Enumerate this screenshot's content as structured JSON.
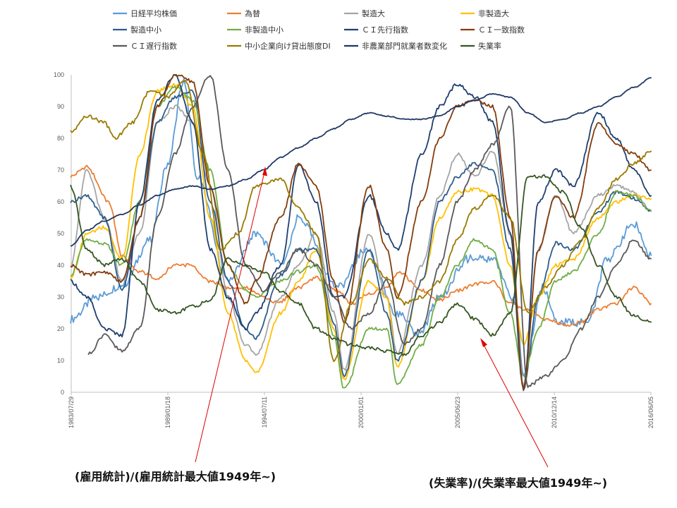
{
  "chart_data": {
    "type": "line",
    "title": "",
    "xlabel": "",
    "ylabel": "",
    "ylim": [
      0,
      100
    ],
    "yticks": [
      0,
      10,
      20,
      30,
      40,
      50,
      60,
      70,
      80,
      90,
      100
    ],
    "xlim": [
      "1983-07-29",
      "2016-06-05"
    ],
    "xticks": [
      "1983/07/29",
      "1989/01/18",
      "1994/07/11",
      "2000/01/01",
      "2005/06/23",
      "2010/12/14",
      "2016/06/05"
    ],
    "grid": "none",
    "legend_position": "top",
    "series": [
      {
        "name": "日経平均株価",
        "color": "#5b9bd5",
        "x": [
          "1983-07",
          "1985-01",
          "1986-07",
          "1988-01",
          "1989-01",
          "1989-12",
          "1990-09",
          "1992-06",
          "1994-01",
          "1995-07",
          "1996-06",
          "1998-09",
          "2000-04",
          "2002-01",
          "2003-04",
          "2004-06",
          "2006-01",
          "2007-06",
          "2008-10",
          "2009-03",
          "2010-04",
          "2011-03",
          "2012-11",
          "2013-12",
          "2015-06",
          "2016-06"
        ],
        "y": [
          23,
          30,
          34,
          48,
          72,
          98,
          68,
          35,
          50,
          40,
          55,
          33,
          45,
          25,
          18,
          30,
          42,
          42,
          28,
          5,
          33,
          22,
          22,
          42,
          53,
          43
        ]
      },
      {
        "name": "為替",
        "color": "#ed7d31",
        "x": [
          "1983-07",
          "1984-06",
          "1985-09",
          "1986-06",
          "1987-06",
          "1988-06",
          "1989-06",
          "1990-04",
          "1991-06",
          "1992-06",
          "1993-06",
          "1994-06",
          "1995-04",
          "1996-06",
          "1997-06",
          "1998-08",
          "1999-06",
          "2000-06",
          "2001-06",
          "2002-02",
          "2003-06",
          "2004-06",
          "2005-06",
          "2006-06",
          "2007-06",
          "2008-06",
          "2009-06",
          "2010-06",
          "2011-10",
          "2012-06",
          "2013-06",
          "2014-06",
          "2015-06",
          "2016-06"
        ],
        "y": [
          68,
          71,
          60,
          43,
          38,
          36,
          40,
          40,
          35,
          33,
          33,
          30,
          28,
          33,
          36,
          32,
          28,
          31,
          33,
          38,
          32,
          29,
          32,
          34,
          35,
          28,
          26,
          23,
          21,
          22,
          26,
          28,
          33,
          28
        ]
      },
      {
        "name": "製造大",
        "color": "#a5a5a5",
        "x": [
          "1983-07",
          "1984-06",
          "1985-06",
          "1986-06",
          "1987-06",
          "1988-06",
          "1989-06",
          "1990-06",
          "1991-06",
          "1992-06",
          "1993-06",
          "1994-01",
          "1995-06",
          "1996-06",
          "1997-06",
          "1998-06",
          "1999-01",
          "2000-06",
          "2001-06",
          "2002-01",
          "2003-06",
          "2004-06",
          "2005-06",
          "2006-06",
          "2007-06",
          "2008-06",
          "2009-03",
          "2010-01",
          "2011-01",
          "2012-01",
          "2013-06",
          "2014-06",
          "2015-06",
          "2016-06"
        ],
        "y": [
          40,
          70,
          55,
          35,
          50,
          85,
          90,
          85,
          65,
          30,
          15,
          12,
          30,
          40,
          50,
          25,
          7,
          50,
          30,
          12,
          40,
          62,
          75,
          68,
          76,
          50,
          2,
          45,
          62,
          50,
          62,
          65,
          63,
          57
        ]
      },
      {
        "name": "非製造大",
        "color": "#ffc000",
        "x": [
          "1983-07",
          "1984-06",
          "1985-06",
          "1986-06",
          "1987-06",
          "1988-06",
          "1989-06",
          "1990-06",
          "1991-06",
          "1992-06",
          "1993-06",
          "1994-01",
          "1995-06",
          "1996-06",
          "1997-06",
          "1998-06",
          "1999-01",
          "2000-06",
          "2001-06",
          "2002-01",
          "2003-06",
          "2004-06",
          "2005-06",
          "2006-06",
          "2007-06",
          "2008-06",
          "2009-03",
          "2010-01",
          "2011-01",
          "2012-01",
          "2013-06",
          "2014-06",
          "2015-06",
          "2016-06"
        ],
        "y": [
          36,
          50,
          52,
          42,
          75,
          95,
          97,
          90,
          55,
          25,
          10,
          6,
          25,
          35,
          45,
          20,
          4,
          35,
          30,
          8,
          35,
          55,
          63,
          64,
          62,
          40,
          15,
          30,
          40,
          42,
          55,
          60,
          62,
          61
        ]
      },
      {
        "name": "製造中小",
        "color": "#2e5c8a",
        "x": [
          "1983-07",
          "1984-06",
          "1985-06",
          "1986-06",
          "1987-06",
          "1988-06",
          "1989-06",
          "1990-06",
          "1991-06",
          "1992-06",
          "1993-06",
          "1994-01",
          "1995-06",
          "1996-06",
          "1997-06",
          "1998-06",
          "1999-01",
          "2000-06",
          "2001-06",
          "2002-01",
          "2003-06",
          "2004-06",
          "2005-06",
          "2006-06",
          "2007-06",
          "2008-06",
          "2009-03",
          "2010-01",
          "2011-01",
          "2012-01",
          "2013-06",
          "2014-06",
          "2015-06",
          "2016-06"
        ],
        "y": [
          60,
          62,
          55,
          32,
          55,
          85,
          93,
          95,
          60,
          35,
          20,
          17,
          37,
          45,
          45,
          22,
          5,
          45,
          25,
          10,
          35,
          60,
          68,
          72,
          70,
          45,
          1,
          30,
          47,
          45,
          57,
          63,
          61,
          57
        ]
      },
      {
        "name": "非製造中小",
        "color": "#70ad47",
        "x": [
          "1983-07",
          "1984-06",
          "1985-06",
          "1986-06",
          "1987-06",
          "1988-06",
          "1989-06",
          "1990-06",
          "1991-06",
          "1992-06",
          "1993-06",
          "1994-01",
          "1995-06",
          "1996-06",
          "1997-06",
          "1998-06",
          "1999-01",
          "2000-06",
          "2001-06",
          "2002-01",
          "2003-06",
          "2004-06",
          "2005-06",
          "2006-06",
          "2007-06",
          "2008-06",
          "2009-03",
          "2010-01",
          "2011-01",
          "2012-01",
          "2013-06",
          "2014-06",
          "2015-06",
          "2016-06"
        ],
        "y": [
          37,
          48,
          47,
          40,
          60,
          90,
          96,
          92,
          70,
          40,
          32,
          30,
          35,
          38,
          40,
          18,
          1,
          20,
          20,
          3,
          15,
          30,
          40,
          48,
          45,
          25,
          5,
          20,
          35,
          38,
          50,
          63,
          62,
          57
        ]
      },
      {
        "name": "ＣＩ先行指数",
        "color": "#1f3f6e",
        "x": [
          "1983-07",
          "1984-06",
          "1985-06",
          "1986-06",
          "1987-06",
          "1988-06",
          "1989-06",
          "1990-06",
          "1991-06",
          "1992-06",
          "1993-06",
          "1994-01",
          "1995-06",
          "1996-06",
          "1997-06",
          "1998-06",
          "1999-01",
          "2000-06",
          "2001-06",
          "2002-01",
          "2003-06",
          "2004-06",
          "2005-06",
          "2006-06",
          "2007-06",
          "2008-06",
          "2009-03",
          "2010-01",
          "2011-01",
          "2012-01",
          "2013-06",
          "2014-06",
          "2015-06",
          "2016-06"
        ],
        "y": [
          35,
          30,
          20,
          18,
          60,
          92,
          100,
          85,
          45,
          30,
          20,
          25,
          40,
          72,
          60,
          30,
          30,
          62,
          50,
          45,
          75,
          90,
          97,
          93,
          85,
          50,
          1,
          60,
          70,
          65,
          88,
          80,
          70,
          62
        ]
      },
      {
        "name": "ＣＩ一致指数",
        "color": "#843c0c",
        "x": [
          "1983-07",
          "1984-06",
          "1985-06",
          "1986-06",
          "1987-06",
          "1988-06",
          "1989-06",
          "1990-06",
          "1991-06",
          "1992-06",
          "1993-06",
          "1994-01",
          "1995-06",
          "1996-06",
          "1997-06",
          "1998-06",
          "1999-01",
          "2000-06",
          "2001-06",
          "2002-01",
          "2003-06",
          "2004-06",
          "2005-06",
          "2006-06",
          "2007-06",
          "2008-06",
          "2009-03",
          "2010-01",
          "2011-01",
          "2012-01",
          "2013-06",
          "2014-06",
          "2015-06",
          "2016-06"
        ],
        "y": [
          40,
          37,
          38,
          35,
          55,
          90,
          100,
          98,
          65,
          40,
          28,
          35,
          55,
          72,
          65,
          35,
          22,
          65,
          45,
          30,
          60,
          80,
          90,
          92,
          90,
          55,
          1,
          45,
          62,
          55,
          85,
          78,
          75,
          70
        ]
      },
      {
        "name": "ＣＩ遅行指数",
        "color": "#595959",
        "x": [
          "1984-07",
          "1985-06",
          "1986-06",
          "1987-06",
          "1988-06",
          "1989-06",
          "1990-06",
          "1991-06",
          "1992-06",
          "1993-06",
          "1994-06",
          "1995-06",
          "1996-06",
          "1997-06",
          "1998-06",
          "1999-06",
          "2000-06",
          "2001-06",
          "2002-06",
          "2003-06",
          "2004-06",
          "2005-06",
          "2006-06",
          "2007-06",
          "2008-06",
          "2009-06",
          "2010-06",
          "2011-06",
          "2012-06",
          "2013-06",
          "2014-06",
          "2015-06",
          "2016-06"
        ],
        "y": [
          12,
          18,
          13,
          20,
          55,
          75,
          90,
          100,
          70,
          40,
          32,
          38,
          45,
          40,
          30,
          20,
          25,
          35,
          15,
          20,
          40,
          60,
          70,
          78,
          90,
          2,
          5,
          10,
          20,
          30,
          40,
          48,
          42
        ]
      },
      {
        "name": "中小企業向け貸出態度DI",
        "color": "#997a00",
        "x": [
          "1983-07",
          "1984-06",
          "1985-06",
          "1986-01",
          "1987-01",
          "1988-01",
          "1989-01",
          "1990-01",
          "1991-01",
          "1992-01",
          "1993-01",
          "1994-01",
          "1995-06",
          "1996-06",
          "1997-06",
          "1998-06",
          "1999-06",
          "2000-06",
          "2001-06",
          "2002-06",
          "2003-06",
          "2004-06",
          "2005-06",
          "2006-06",
          "2007-06",
          "2008-06",
          "2009-06",
          "2010-06",
          "2011-06",
          "2012-06",
          "2013-06",
          "2014-06",
          "2015-06",
          "2016-06"
        ],
        "y": [
          82,
          87,
          85,
          80,
          85,
          95,
          93,
          98,
          75,
          45,
          50,
          65,
          67,
          58,
          50,
          10,
          28,
          42,
          36,
          28,
          30,
          35,
          48,
          58,
          62,
          55,
          25,
          33,
          40,
          48,
          58,
          67,
          72,
          76
        ]
      },
      {
        "name": "非農業部門就業者数変化",
        "color": "#203864",
        "x": [
          "1983-07",
          "1984-06",
          "1985-06",
          "1986-06",
          "1987-06",
          "1988-06",
          "1989-06",
          "1990-06",
          "1991-06",
          "1992-06",
          "1993-06",
          "1994-06",
          "1995-06",
          "1996-06",
          "1997-06",
          "1998-06",
          "1999-06",
          "2000-06",
          "2001-06",
          "2002-06",
          "2003-06",
          "2004-06",
          "2005-06",
          "2006-06",
          "2007-06",
          "2008-06",
          "2009-06",
          "2010-06",
          "2011-06",
          "2012-06",
          "2013-06",
          "2014-06",
          "2015-06",
          "2016-06"
        ],
        "y": [
          46,
          51,
          54,
          56,
          59,
          62,
          64,
          65,
          64,
          65,
          67,
          70,
          74,
          77,
          80,
          83,
          86,
          88,
          87,
          86,
          86,
          87,
          90,
          92,
          94,
          93,
          88,
          85,
          86,
          88,
          90,
          93,
          96,
          99
        ]
      },
      {
        "name": "失業率",
        "color": "#375623",
        "x": [
          "1983-07",
          "1984-06",
          "1985-06",
          "1986-06",
          "1987-06",
          "1988-06",
          "1989-06",
          "1990-06",
          "1991-06",
          "1992-06",
          "1993-06",
          "1994-06",
          "1995-06",
          "1996-06",
          "1997-06",
          "1998-06",
          "1999-06",
          "2000-06",
          "2001-06",
          "2002-06",
          "2003-06",
          "2004-06",
          "2005-06",
          "2006-06",
          "2007-06",
          "2008-06",
          "2009-06",
          "2010-06",
          "2011-06",
          "2012-06",
          "2013-06",
          "2014-06",
          "2015-06",
          "2016-06"
        ],
        "y": [
          65,
          45,
          40,
          42,
          35,
          26,
          25,
          27,
          29,
          42,
          40,
          38,
          32,
          28,
          20,
          17,
          15,
          14,
          13,
          12,
          18,
          22,
          28,
          23,
          18,
          25,
          68,
          68,
          63,
          52,
          40,
          30,
          24,
          22
        ]
      }
    ]
  },
  "annotations": {
    "employment_note": "(雇用統計)/(雇用統計最大値1949年~)",
    "unemployment_note": "(失業率)/(失業率最大値1949年~)"
  }
}
